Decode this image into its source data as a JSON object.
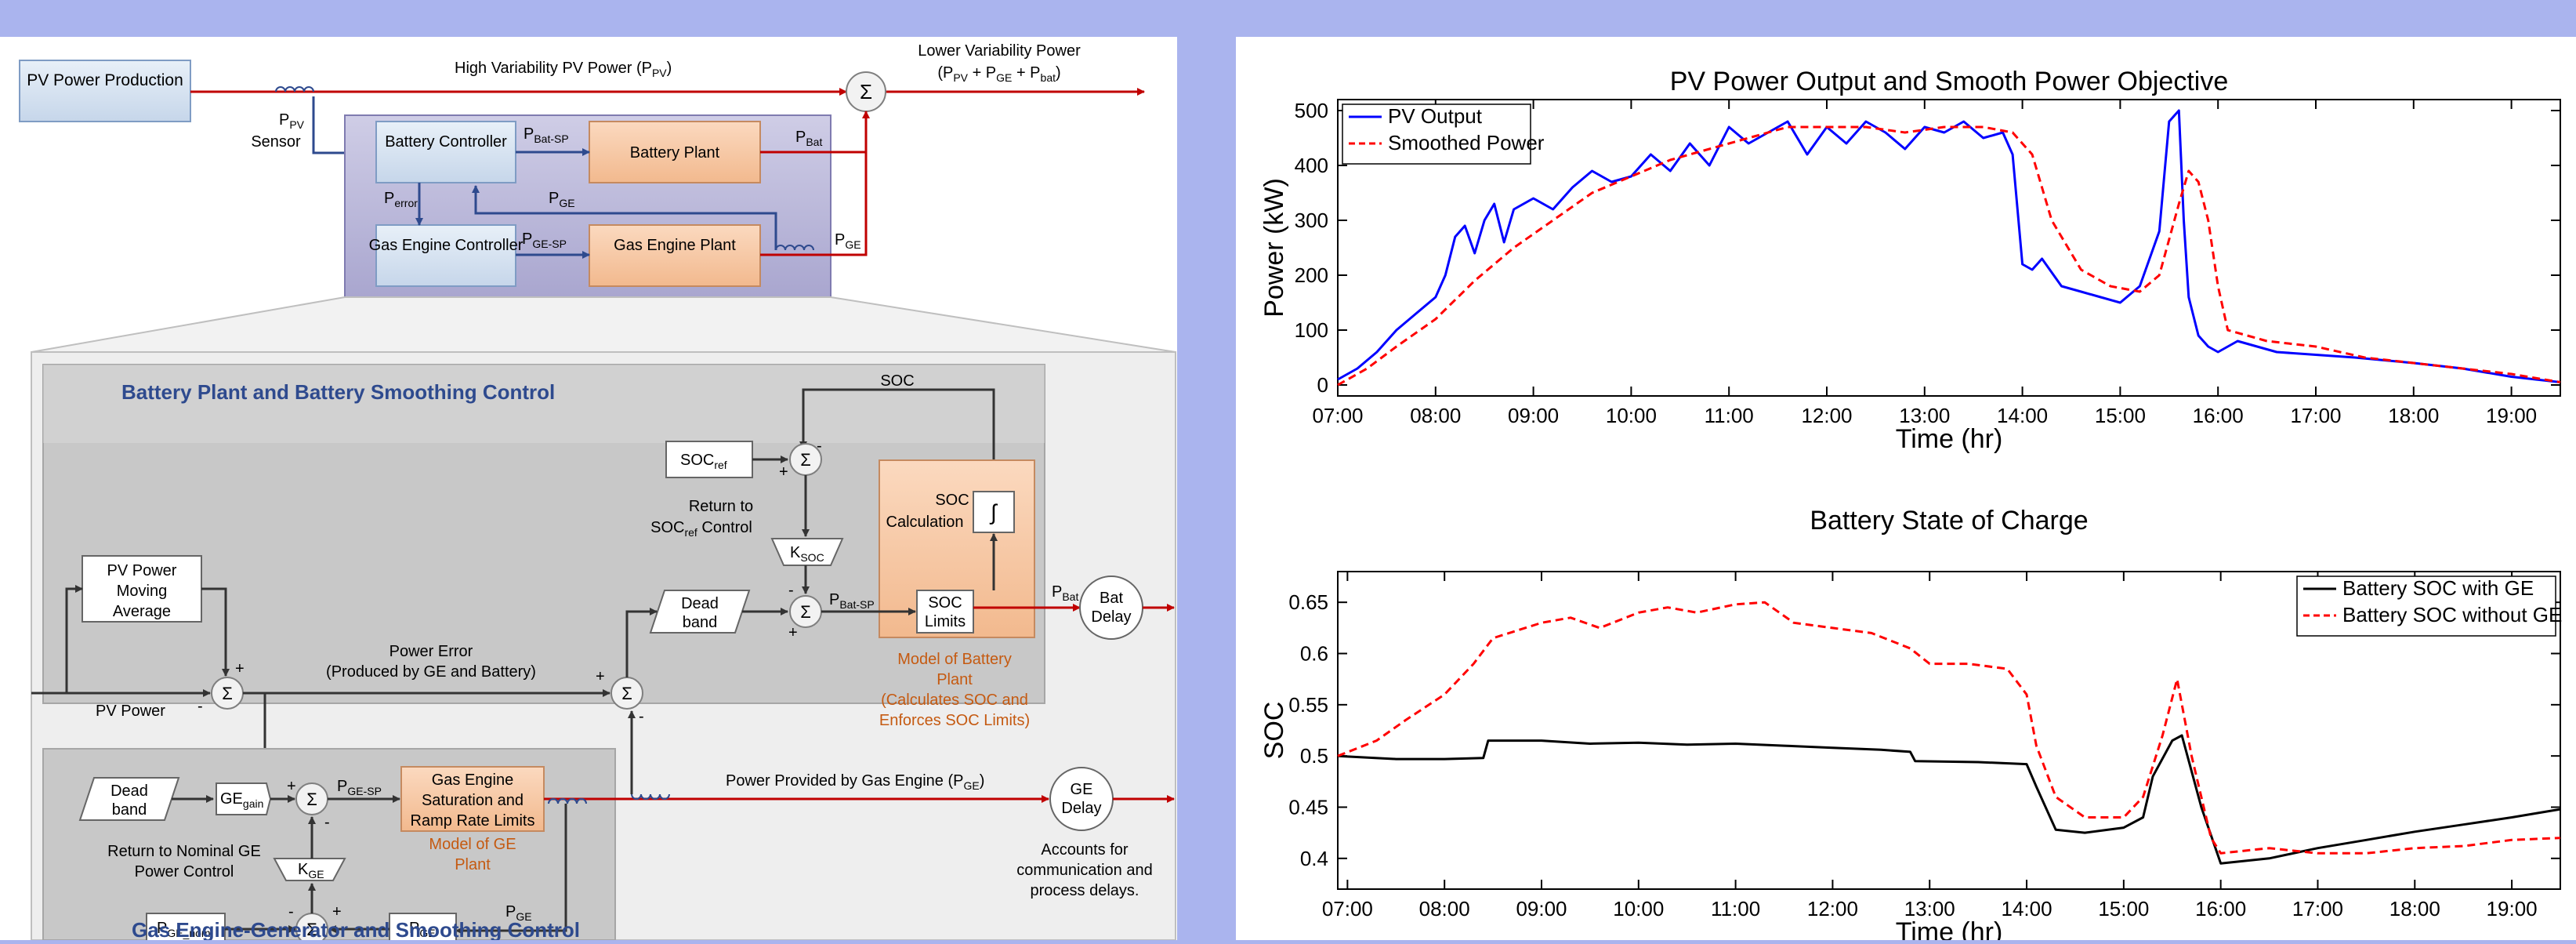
{
  "diagram": {
    "top": {
      "pv_power_production": "PV Power Production",
      "high_variability_pv_power": "High Variability PV Power (P",
      "pv_sub": "PV",
      "lower_variability_power": "Lower Variability Power",
      "lower_formula": "(P",
      "formula_pv": "PV",
      "formula_plus1": " + P",
      "formula_ge": "GE",
      "formula_plus2": " + P",
      "formula_bat": "bat",
      "paren_close": ")",
      "sum_symbol": "Σ",
      "p_sym": "P",
      "sensor_label": "Sensor",
      "battery_controller": "Battery Controller",
      "battery_plant": "Battery Plant",
      "gas_engine_controller": "Gas Engine Controller",
      "gas_engine_plant": "Gas Engine Plant",
      "p_bat_sp_sub": "Bat-SP",
      "p_bat_sub": "Bat",
      "p_error_sub": "error",
      "p_ge_sub": "GE",
      "p_ge_sp_sub": "GE-SP"
    },
    "battery_section": {
      "title": "Battery Plant and Battery Smoothing Control",
      "soc": "SOC",
      "soc_ref_main": "SOC",
      "soc_ref_sub": "ref",
      "return_to": "Return to",
      "soc_ref_control_main": "SOC",
      "soc_ref_control_sub": "ref",
      "soc_ref_control_tail": " Control",
      "k_main": "K",
      "k_soc_sub": "SOC",
      "soc_calculation": "SOC Calculation",
      "integral": "∫",
      "dead_band": "Dead band",
      "soc_limits": "SOC Limits",
      "model_line1": "Model of Battery",
      "model_line2": "Plant",
      "model_line3": "(Calculates SOC and",
      "model_line4": "Enforces SOC Limits)",
      "bat_delay": "Bat Delay",
      "pv_power_moving_average": "PV Power Moving Average",
      "power_error_line1": "Power Error",
      "power_error_line2": "(Produced by GE and Battery)",
      "pv_power": "PV Power",
      "plus": "+",
      "minus": "-"
    },
    "ge_section": {
      "title": "Gas Engine-Generator and Smoothing Control",
      "dead_band": "Dead band",
      "ge_gain_main": "GE",
      "ge_gain_sub": "gain",
      "ge_sat_line1": "Gas Engine",
      "ge_sat_line2": "Saturation and",
      "ge_sat_line3": "Ramp Rate Limits",
      "model_line1": "Model of GE",
      "model_line2": "Plant",
      "return_nominal_line1": "Return to Nominal GE",
      "return_nominal_line2": "Power Control",
      "k_ge_sub": "GE",
      "p_ge_nom_sub": "GE_nom",
      "power_provided_by_ge": "Power Provided by Gas Engine (P",
      "ge_delay": "GE Delay",
      "accounts_line1": "Accounts for",
      "accounts_line2": "communication and",
      "accounts_line3": "process delays."
    }
  },
  "colors": {
    "red_flow": "#c00000",
    "blue_signal": "#2e4a8e",
    "block_blue": "#d7e3f0",
    "block_orange": "#f8cbad",
    "panel_gray": "#c8c8c8",
    "title_blue": "#2e4a8e",
    "model_orange": "#c55a11"
  },
  "chart_data": [
    {
      "type": "line",
      "title": "PV Power Output and Smooth Power Objective",
      "xlabel": "Time (hr)",
      "ylabel": "Power (kW)",
      "x_range_hr": [
        7.0,
        19.5
      ],
      "ylim": [
        -20,
        520
      ],
      "x_ticks": [
        "07:00",
        "08:00",
        "09:00",
        "10:00",
        "11:00",
        "12:00",
        "13:00",
        "14:00",
        "15:00",
        "16:00",
        "17:00",
        "18:00",
        "19:00"
      ],
      "y_ticks": [
        0,
        100,
        200,
        300,
        400,
        500
      ],
      "legend": "top-left",
      "grid": false,
      "series": [
        {
          "name": "PV Output",
          "color": "#0000ff",
          "dash": "solid",
          "x": [
            7.0,
            7.2,
            7.4,
            7.6,
            7.8,
            8.0,
            8.1,
            8.2,
            8.3,
            8.4,
            8.5,
            8.6,
            8.7,
            8.8,
            9.0,
            9.2,
            9.4,
            9.6,
            9.8,
            10.0,
            10.2,
            10.4,
            10.6,
            10.8,
            11.0,
            11.2,
            11.4,
            11.6,
            11.8,
            12.0,
            12.2,
            12.4,
            12.6,
            12.8,
            13.0,
            13.2,
            13.4,
            13.6,
            13.8,
            13.9,
            14.0,
            14.1,
            14.2,
            14.4,
            14.6,
            14.8,
            15.0,
            15.2,
            15.4,
            15.5,
            15.55,
            15.6,
            15.65,
            15.7,
            15.8,
            15.9,
            16.0,
            16.2,
            16.4,
            16.6,
            17.0,
            17.4,
            18.0,
            18.5,
            19.0,
            19.5
          ],
          "y": [
            10,
            30,
            60,
            100,
            130,
            160,
            200,
            270,
            290,
            240,
            300,
            330,
            260,
            320,
            340,
            320,
            360,
            390,
            370,
            380,
            420,
            390,
            440,
            400,
            470,
            440,
            460,
            480,
            420,
            470,
            440,
            480,
            460,
            430,
            470,
            460,
            480,
            450,
            460,
            420,
            220,
            210,
            230,
            180,
            170,
            160,
            150,
            180,
            280,
            480,
            490,
            500,
            300,
            160,
            90,
            70,
            60,
            80,
            70,
            60,
            55,
            50,
            40,
            30,
            15,
            5
          ]
        },
        {
          "name": "Smoothed Power",
          "color": "#ff0000",
          "dash": "dashed",
          "x": [
            7.0,
            7.3,
            7.6,
            8.0,
            8.4,
            8.8,
            9.2,
            9.6,
            10.0,
            10.4,
            10.8,
            11.2,
            11.6,
            12.0,
            12.4,
            12.8,
            13.2,
            13.6,
            13.9,
            14.1,
            14.3,
            14.6,
            14.9,
            15.2,
            15.4,
            15.6,
            15.7,
            15.8,
            15.9,
            16.0,
            16.1,
            16.5,
            17.0,
            17.5,
            18.0,
            18.5,
            19.0,
            19.5
          ],
          "y": [
            0,
            30,
            70,
            120,
            190,
            250,
            300,
            350,
            380,
            410,
            430,
            450,
            470,
            470,
            470,
            460,
            470,
            470,
            460,
            420,
            300,
            210,
            180,
            170,
            200,
            330,
            390,
            370,
            300,
            180,
            100,
            80,
            70,
            50,
            40,
            30,
            20,
            5
          ]
        }
      ]
    },
    {
      "type": "line",
      "title": "Battery State of Charge",
      "xlabel": "Time (hr)",
      "ylabel": "SOC",
      "x_range_hr": [
        6.9,
        19.5
      ],
      "ylim": [
        0.37,
        0.68
      ],
      "x_ticks": [
        "07:00",
        "08:00",
        "09:00",
        "10:00",
        "11:00",
        "12:00",
        "13:00",
        "14:00",
        "15:00",
        "16:00",
        "17:00",
        "18:00",
        "19:00"
      ],
      "y_ticks": [
        0.4,
        0.45,
        0.5,
        0.55,
        0.6,
        0.65
      ],
      "legend": "top-right",
      "grid": false,
      "series": [
        {
          "name": "Battery SOC with GE",
          "color": "#000000",
          "dash": "solid",
          "x": [
            6.9,
            7.5,
            8.0,
            8.4,
            8.45,
            9.0,
            9.5,
            10.0,
            10.5,
            11.0,
            11.5,
            12.0,
            12.5,
            12.8,
            12.85,
            13.5,
            14.0,
            14.1,
            14.3,
            14.6,
            15.0,
            15.2,
            15.3,
            15.5,
            15.6,
            15.8,
            16.0,
            16.5,
            17.0,
            17.5,
            18.0,
            18.5,
            19.0,
            19.5
          ],
          "y": [
            0.5,
            0.497,
            0.497,
            0.498,
            0.515,
            0.515,
            0.512,
            0.513,
            0.511,
            0.512,
            0.51,
            0.508,
            0.506,
            0.504,
            0.495,
            0.494,
            0.492,
            0.47,
            0.428,
            0.425,
            0.43,
            0.44,
            0.48,
            0.515,
            0.52,
            0.45,
            0.395,
            0.4,
            0.41,
            0.418,
            0.426,
            0.433,
            0.44,
            0.448
          ]
        },
        {
          "name": "Battery SOC without GE",
          "color": "#ff0000",
          "dash": "dashed",
          "x": [
            6.9,
            7.3,
            7.6,
            8.0,
            8.3,
            8.5,
            9.0,
            9.3,
            9.6,
            10.0,
            10.3,
            10.6,
            11.0,
            11.3,
            11.6,
            12.0,
            12.4,
            12.8,
            13.0,
            13.4,
            13.8,
            14.0,
            14.1,
            14.3,
            14.6,
            15.0,
            15.2,
            15.4,
            15.55,
            15.7,
            15.9,
            16.0,
            16.5,
            17.0,
            17.5,
            18.0,
            18.5,
            19.0,
            19.5
          ],
          "y": [
            0.5,
            0.515,
            0.535,
            0.56,
            0.59,
            0.615,
            0.63,
            0.635,
            0.625,
            0.64,
            0.645,
            0.64,
            0.648,
            0.65,
            0.63,
            0.625,
            0.62,
            0.605,
            0.59,
            0.59,
            0.585,
            0.56,
            0.51,
            0.46,
            0.44,
            0.44,
            0.46,
            0.52,
            0.575,
            0.5,
            0.42,
            0.405,
            0.41,
            0.405,
            0.405,
            0.41,
            0.412,
            0.418,
            0.42
          ]
        }
      ]
    }
  ]
}
